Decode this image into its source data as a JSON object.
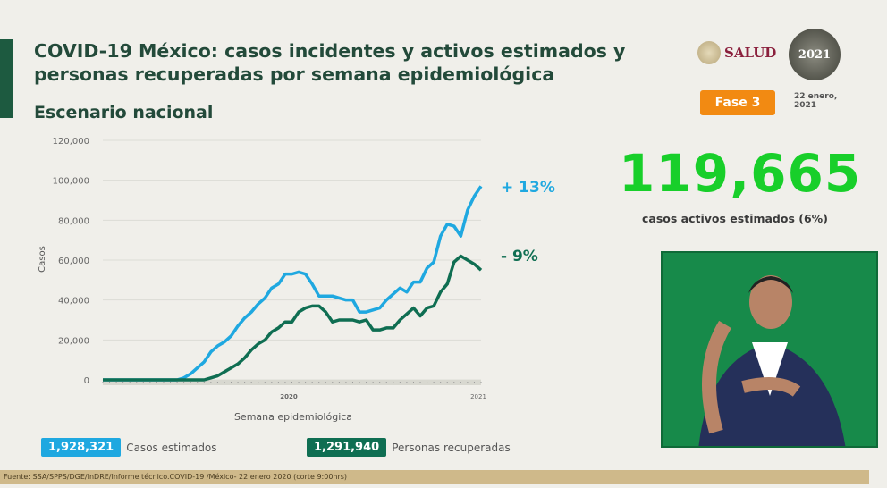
{
  "title": "COVID-19 México: casos incidentes y activos estimados y personas recuperadas por semana epidemiológica",
  "subtitle": "Escenario nacional",
  "logo": {
    "salud": "SALUD",
    "year_badge": "2021"
  },
  "phase_badge": "Fase 3",
  "date": "22 enero, 2021",
  "active_cases": {
    "value": "119,665",
    "label": "casos activos estimados (6%)"
  },
  "legend": {
    "estimated": {
      "value": "1,928,321",
      "label": "Casos estimados"
    },
    "recovered": {
      "value": "1,291,940",
      "label": "Personas recuperadas"
    }
  },
  "footer": "Fuente: SSA/SPPS/DGE/InDRE/Informe técnico.COVID-19 /México- 22 enero 2020 (corte 9:00hrs)",
  "colors": {
    "estimated": "#1fa8e0",
    "recovered": "#0f6e52",
    "active": "#18cf2a",
    "phase": "#f28a12"
  },
  "chart_data": {
    "type": "line",
    "xlabel": "Semana epidemiológica",
    "ylabel": "Casos",
    "ylim": [
      0,
      120000
    ],
    "yticks": [
      "0",
      "20,000",
      "40,000",
      "60,000",
      "80,000",
      "100,000",
      "120,000"
    ],
    "year_labels": [
      "2020",
      "2021"
    ],
    "grid": true,
    "series": [
      {
        "key": "estimated",
        "annotation": "+ 13%",
        "values": [
          0,
          0,
          0,
          0,
          0,
          0,
          0,
          0,
          0,
          0,
          0,
          0,
          1000,
          3000,
          6000,
          9000,
          14000,
          17000,
          19000,
          22000,
          27000,
          31000,
          34000,
          38000,
          41000,
          46000,
          48000,
          53000,
          53000,
          54000,
          53000,
          48000,
          42000,
          42000,
          42000,
          41000,
          40000,
          40000,
          34000,
          34000,
          35000,
          36000,
          40000,
          43000,
          46000,
          44000,
          49000,
          49000,
          56000,
          59000,
          72000,
          78000,
          77000,
          72000,
          85000,
          92000,
          97000
        ]
      },
      {
        "key": "recovered",
        "annotation": "- 9%",
        "values": [
          0,
          0,
          0,
          0,
          0,
          0,
          0,
          0,
          0,
          0,
          0,
          0,
          0,
          0,
          0,
          0,
          1000,
          2000,
          4000,
          6000,
          8000,
          11000,
          15000,
          18000,
          20000,
          24000,
          26000,
          29000,
          29000,
          34000,
          36000,
          37000,
          37000,
          34000,
          29000,
          30000,
          30000,
          30000,
          29000,
          30000,
          25000,
          25000,
          26000,
          26000,
          30000,
          33000,
          36000,
          32000,
          36000,
          37000,
          44000,
          48000,
          59000,
          62000,
          60000,
          58000,
          55000
        ]
      }
    ]
  }
}
